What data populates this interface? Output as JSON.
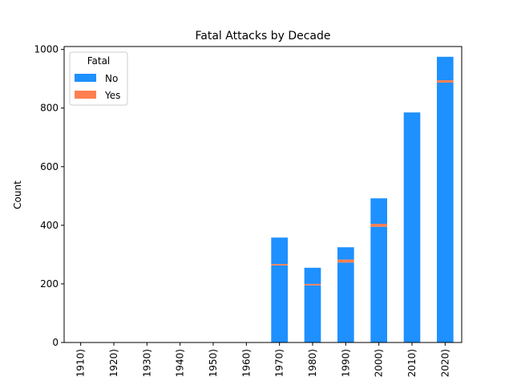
{
  "chart_data": {
    "type": "bar",
    "stacked": true,
    "title": "Fatal Attacks by Decade",
    "xlabel": "",
    "ylabel": "Count",
    "ylim": [
      0,
      1010
    ],
    "yticks": [
      0,
      200,
      400,
      600,
      800,
      1000
    ],
    "grid": false,
    "categories": [
      "1910)",
      "1920)",
      "1930)",
      "1940)",
      "1950)",
      "1960)",
      "1970)",
      "1980)",
      "1990)",
      "2000)",
      "2010)",
      "2020)"
    ],
    "series": [
      {
        "name": "No",
        "color": "#1E90FF",
        "values": [
          0,
          0,
          0,
          0,
          0,
          0,
          263,
          195,
          273,
          395,
          785,
          887
        ]
      },
      {
        "name": "Yes",
        "color": "#FF7F50",
        "values": [
          0,
          0,
          0,
          0,
          0,
          0,
          5,
          5,
          10,
          10,
          0,
          8
        ]
      }
    ],
    "segments_after": [
      {
        "category": "1970)",
        "value": 90
      },
      {
        "category": "1980)",
        "value": 55
      },
      {
        "category": "1990)",
        "value": 42
      },
      {
        "category": "2000)",
        "value": 87
      },
      {
        "category": "2010)",
        "value": 0
      },
      {
        "category": "2020)",
        "value": 80
      }
    ],
    "legend": {
      "title": "Fatal",
      "placement": "top-left"
    }
  }
}
